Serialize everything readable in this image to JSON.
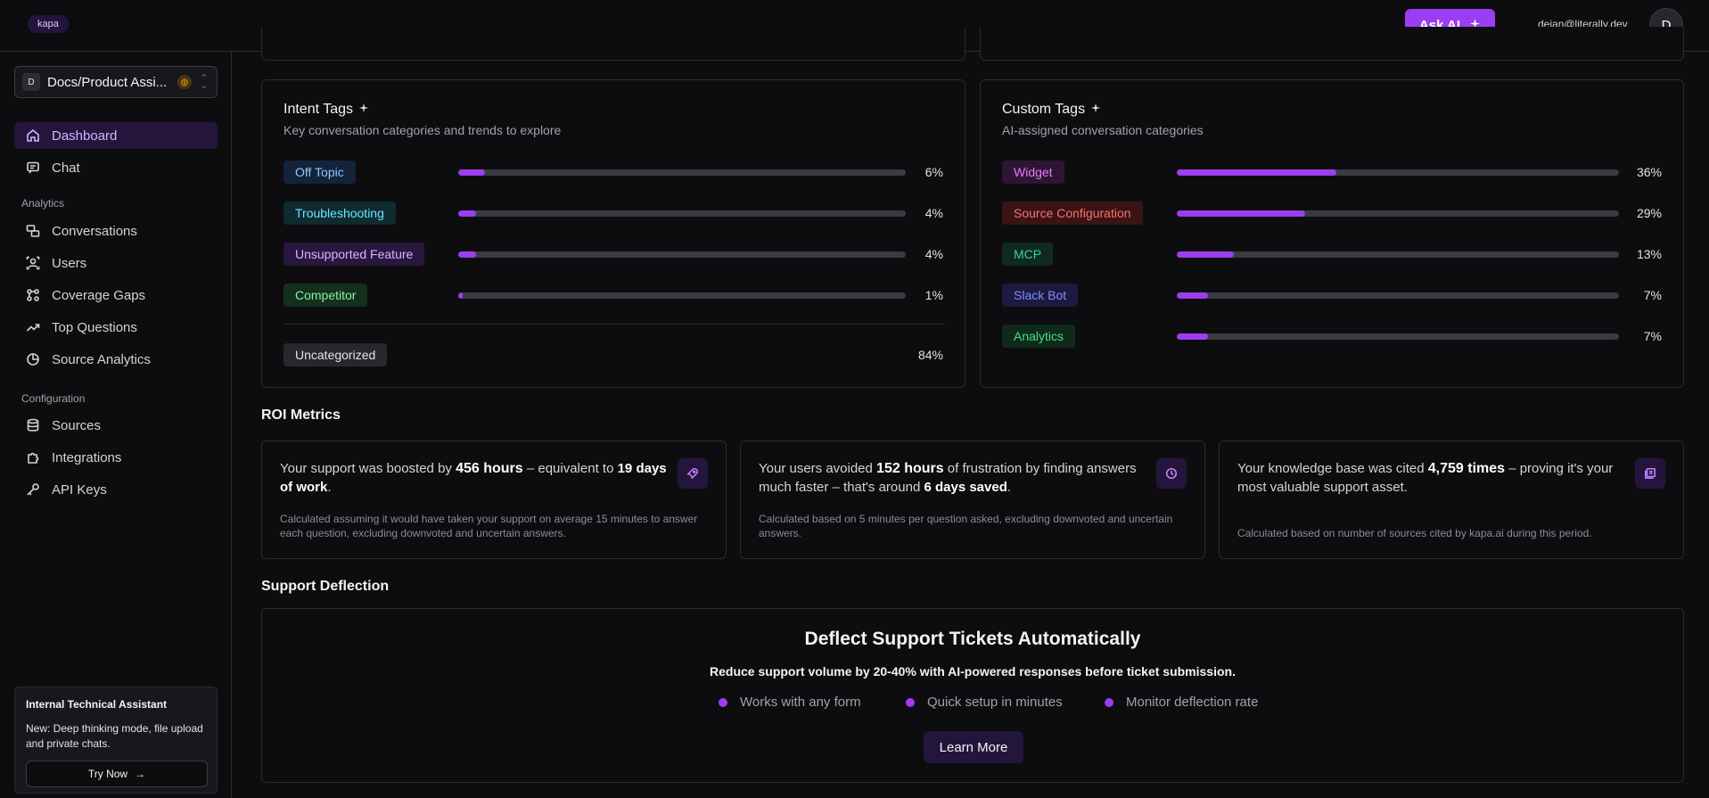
{
  "header": {
    "logo": "kapa",
    "ask_ai": "Ask AI",
    "user_email": "dejan@literally.dev",
    "avatar_initial": "D"
  },
  "sidebar": {
    "project_initial": "D",
    "project_name": "Docs/Product Assi...",
    "nav": [
      {
        "label": "Dashboard",
        "icon": "home-icon",
        "active": true
      },
      {
        "label": "Chat",
        "icon": "chat-icon"
      }
    ],
    "analytics_label": "Analytics",
    "analytics": [
      {
        "label": "Conversations",
        "icon": "conversations-icon"
      },
      {
        "label": "Users",
        "icon": "users-icon"
      },
      {
        "label": "Coverage Gaps",
        "icon": "coverage-gaps-icon"
      },
      {
        "label": "Top Questions",
        "icon": "trending-icon"
      },
      {
        "label": "Source Analytics",
        "icon": "pie-chart-icon"
      }
    ],
    "configuration_label": "Configuration",
    "configuration": [
      {
        "label": "Sources",
        "icon": "database-icon"
      },
      {
        "label": "Integrations",
        "icon": "puzzle-icon"
      },
      {
        "label": "API Keys",
        "icon": "key-icon"
      }
    ],
    "promo": {
      "title": "Internal Technical Assistant",
      "text": "New: Deep thinking mode, file upload and private chats.",
      "button": "Try Now"
    }
  },
  "intent_tags": {
    "title": "Intent Tags",
    "subtitle": "Key conversation categories and trends to explore",
    "items": [
      {
        "label": "Off Topic",
        "percent": "6%",
        "value": 6,
        "bg": "#14233a",
        "fg": "#93c5fd"
      },
      {
        "label": "Troubleshooting",
        "percent": "4%",
        "value": 4,
        "bg": "#0f2a30",
        "fg": "#67e8f9"
      },
      {
        "label": "Unsupported Feature",
        "percent": "4%",
        "value": 4,
        "bg": "#2a1740",
        "fg": "#d8b4fe"
      },
      {
        "label": "Competitor",
        "percent": "1%",
        "value": 1,
        "bg": "#14301c",
        "fg": "#86efac"
      }
    ],
    "uncategorized": {
      "label": "Uncategorized",
      "percent": "84%"
    }
  },
  "custom_tags": {
    "title": "Custom Tags",
    "subtitle": "AI-assigned conversation categories",
    "items": [
      {
        "label": "Widget",
        "percent": "36%",
        "value": 36,
        "bg": "#2e1533",
        "fg": "#e879f9"
      },
      {
        "label": "Source Configuration",
        "percent": "29%",
        "value": 29,
        "bg": "#3a1414",
        "fg": "#f87171"
      },
      {
        "label": "MCP",
        "percent": "13%",
        "value": 13,
        "bg": "#0f2a20",
        "fg": "#34d399"
      },
      {
        "label": "Slack Bot",
        "percent": "7%",
        "value": 7,
        "bg": "#1c1a40",
        "fg": "#818cf8"
      },
      {
        "label": "Analytics",
        "percent": "7%",
        "value": 7,
        "bg": "#0f2a1a",
        "fg": "#4ade80"
      }
    ]
  },
  "roi": {
    "title": "ROI Metrics",
    "cards": [
      {
        "pre": "Your support was boosted by ",
        "highlight": "456 hours",
        "mid": " – equivalent to ",
        "strong": "19 days of work",
        "post": ".",
        "note": "Calculated assuming it would have taken your support on average 15 minutes to answer each question, excluding downvoted and uncertain answers.",
        "icon": "rocket-icon"
      },
      {
        "pre": "Your users avoided ",
        "highlight": "152 hours",
        "mid": " of frustration by finding answers much faster – that's around ",
        "strong": "6 days saved",
        "post": ".",
        "note": "Calculated based on 5 minutes per question asked, excluding downvoted and uncertain answers.",
        "icon": "clock-icon"
      },
      {
        "pre": "Your knowledge base was cited ",
        "highlight": "4,759 times",
        "mid": " – proving it's your most valuable support asset.",
        "strong": "",
        "post": "",
        "note": "Calculated based on number of sources cited by kapa.ai during this period.",
        "icon": "book-icon"
      }
    ]
  },
  "deflection": {
    "section_title": "Support Deflection",
    "title": "Deflect Support Tickets Automatically",
    "subtitle": "Reduce support volume by 20-40% with AI-powered responses before ticket submission.",
    "features": [
      "Works with any form",
      "Quick setup in minutes",
      "Monitor deflection rate"
    ],
    "button": "Learn More"
  }
}
